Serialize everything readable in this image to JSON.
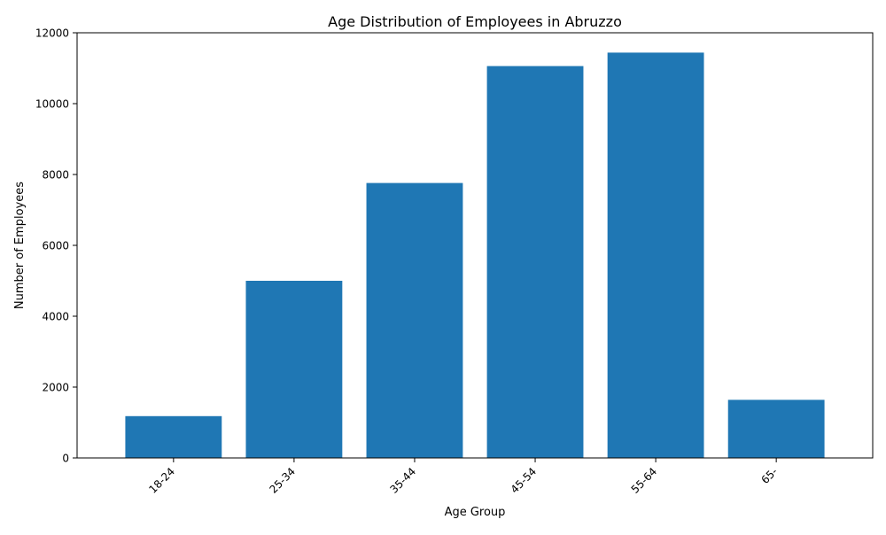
{
  "chart_data": {
    "type": "bar",
    "title": "Age Distribution of Employees in Abruzzo",
    "xlabel": "Age Group",
    "ylabel": "Number of Employees",
    "categories": [
      "18-24",
      "25-34",
      "35-44",
      "45-54",
      "55-64",
      "65-"
    ],
    "values": [
      1180,
      5000,
      7760,
      11060,
      11440,
      1640
    ],
    "ylim": [
      0,
      12000
    ],
    "yticks": [
      0,
      2000,
      4000,
      6000,
      8000,
      10000,
      12000
    ],
    "grid": false,
    "bar_color": "#1f77b4"
  }
}
